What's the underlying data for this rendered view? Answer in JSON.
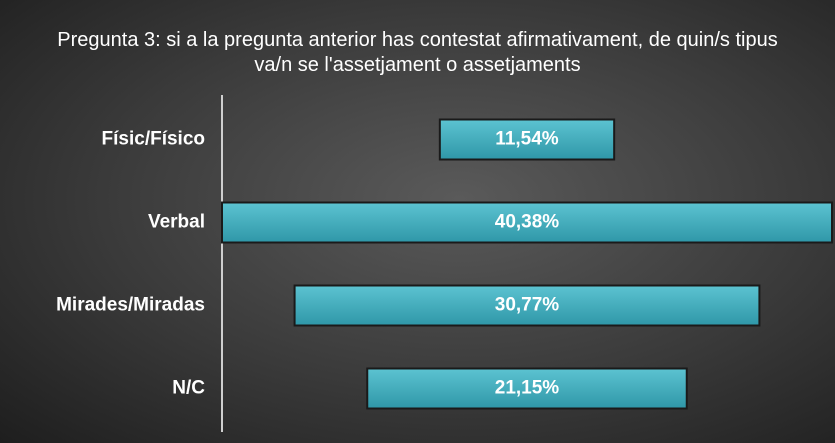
{
  "chart_data": {
    "type": "funnel",
    "title": "Pregunta 3: si a la pregunta anterior has contestat afirmativament, de quin/s tipus va/n se l'assetjament o assetjaments",
    "categories": [
      "Físic/Físico",
      "Verbal",
      "Mirades/Miradas",
      "N/C"
    ],
    "values": [
      11.54,
      40.38,
      30.77,
      21.15
    ],
    "value_labels": [
      "11,54%",
      "40,38%",
      "30,77%",
      "21,15%"
    ],
    "color": "#3aa7b8"
  }
}
